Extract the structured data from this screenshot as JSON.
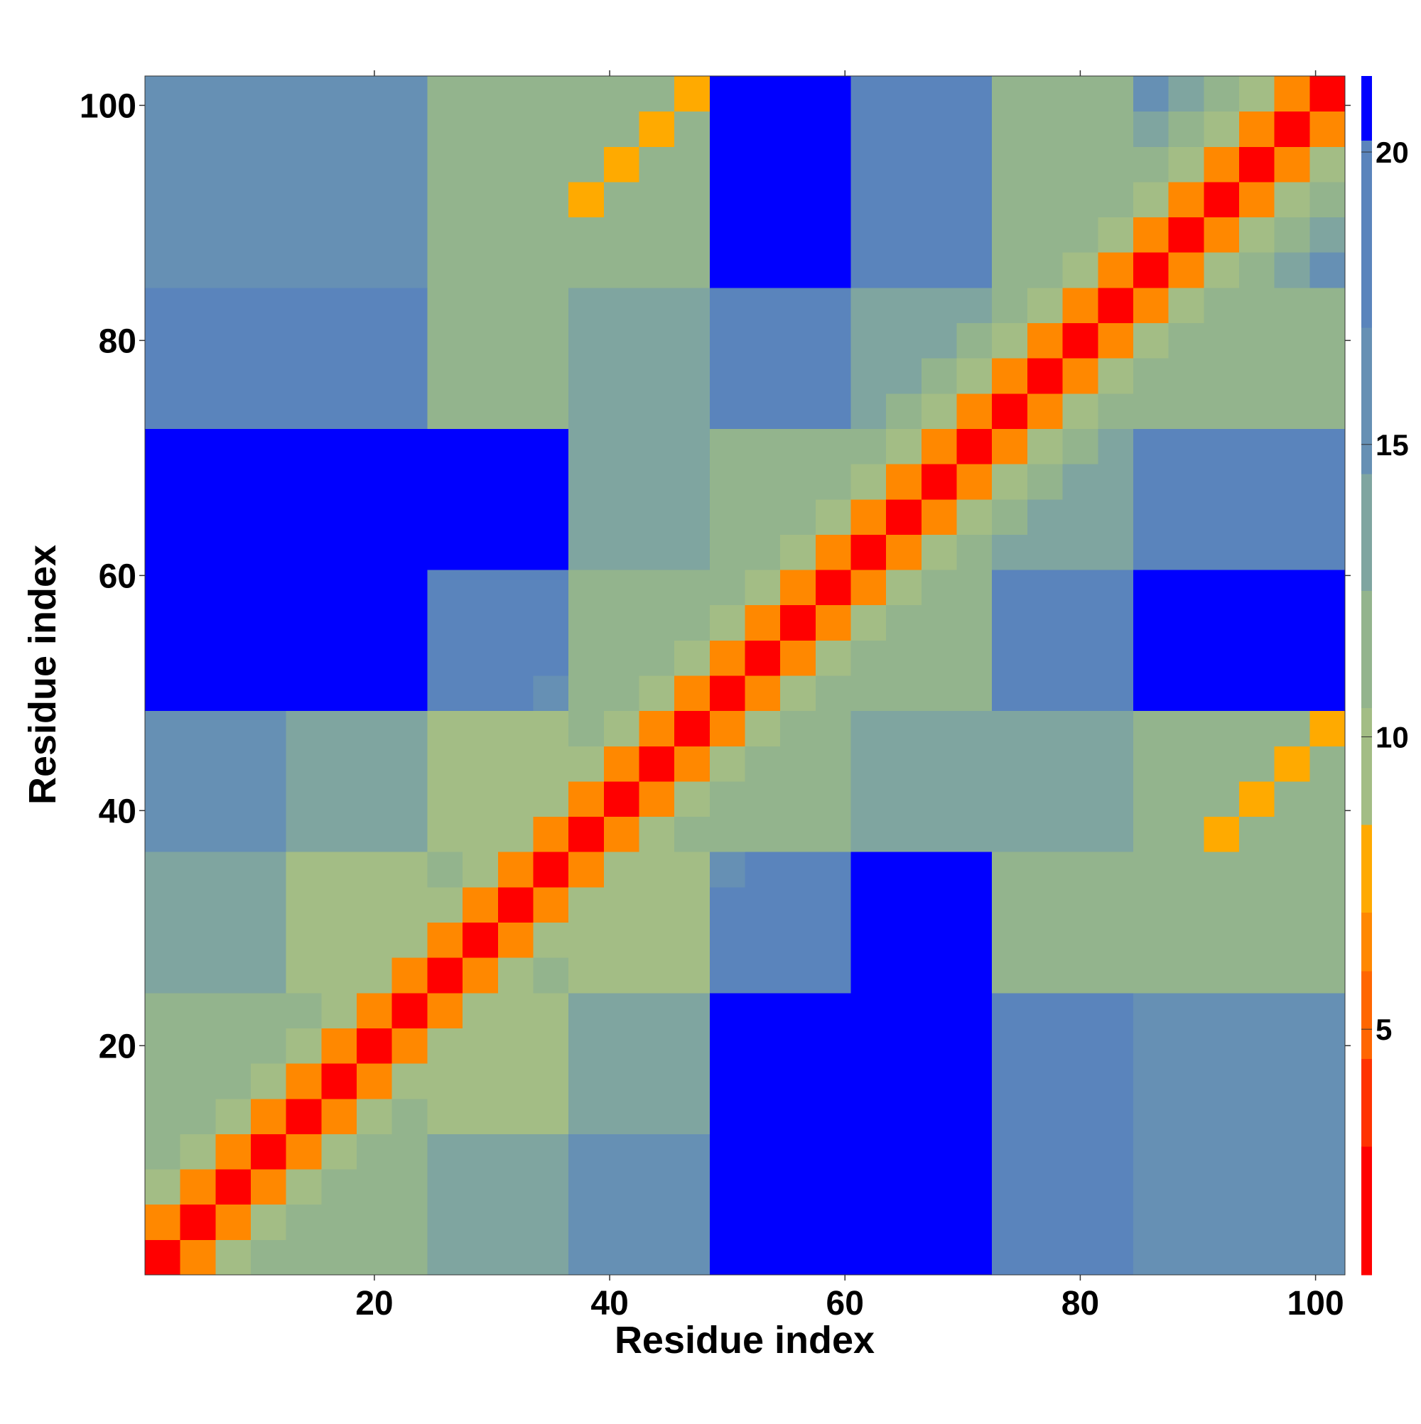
{
  "chart_data": {
    "type": "heatmap",
    "xlabel": "Residue index",
    "ylabel": "Residue index",
    "xbins": [
      0.5,
      3.5,
      6.5,
      9.5,
      12.5,
      15.5,
      18.5,
      21.5,
      24.5,
      27.5,
      30.5,
      33.5,
      36.5,
      39.5,
      42.5,
      45.5,
      48.5,
      51.5,
      54.5,
      57.5,
      60.5,
      63.5,
      66.5,
      69.5,
      72.5,
      75.5,
      78.5,
      81.5,
      84.5,
      87.5,
      90.5,
      93.5,
      96.5,
      99.5,
      102.5
    ],
    "ybins": [
      0.5,
      3.5,
      6.5,
      9.5,
      12.5,
      15.5,
      18.5,
      21.5,
      24.5,
      27.5,
      30.5,
      33.5,
      36.5,
      39.5,
      42.5,
      45.5,
      48.5,
      51.5,
      54.5,
      57.5,
      60.5,
      63.5,
      66.5,
      69.5,
      72.5,
      75.5,
      78.5,
      81.5,
      84.5,
      87.5,
      90.5,
      93.5,
      96.5,
      99.5,
      102.5
    ],
    "xlim": [
      0.5,
      102.5
    ],
    "ylim": [
      0.5,
      102.5
    ],
    "xticks": [
      20,
      40,
      60,
      80,
      100
    ],
    "yticks": [
      20,
      40,
      60,
      80,
      100
    ],
    "colorbar": {
      "bounds": [
        0.8,
        3,
        4.5,
        6,
        7,
        8.5,
        10.5,
        12.5,
        14.5,
        17,
        20.2,
        21.3
      ],
      "colors": [
        "#ff0000",
        "#ff3300",
        "#ff6600",
        "#ff8800",
        "#ffaa00",
        "#a3bd85",
        "#93b48d",
        "#7fa5a0",
        "#6690b4",
        "#5a84bc",
        "#0000ff"
      ],
      "ticks": [
        5,
        10,
        15,
        20
      ]
    },
    "values": [
      [
        2.5,
        6,
        9,
        12,
        11,
        11,
        11,
        11,
        13,
        13,
        13,
        13,
        15,
        15,
        15,
        15,
        21,
        21,
        21,
        21,
        21,
        21,
        21,
        21,
        17,
        17,
        17,
        17,
        16,
        16,
        16,
        16,
        16,
        16
      ],
      [
        6,
        2.5,
        6,
        9,
        11,
        11,
        11,
        11,
        13,
        13,
        13,
        13,
        15,
        15,
        15,
        15,
        21,
        21,
        21,
        21,
        21,
        21,
        21,
        21,
        17,
        17,
        17,
        17,
        16,
        16,
        16,
        16,
        16,
        16
      ],
      [
        9,
        6,
        2.5,
        6,
        9,
        11,
        11,
        11,
        13,
        13,
        13,
        13,
        15,
        15,
        15,
        15,
        21,
        21,
        21,
        21,
        21,
        21,
        21,
        21,
        17,
        17,
        17,
        17,
        16,
        16,
        16,
        16,
        16,
        16
      ],
      [
        12,
        9,
        6,
        2.5,
        6,
        9,
        11,
        11,
        13,
        13,
        13,
        13,
        15,
        15,
        15,
        15,
        21,
        21,
        21,
        21,
        21,
        21,
        21,
        21,
        17,
        17,
        17,
        17,
        16,
        16,
        16,
        16,
        16,
        16
      ],
      [
        11,
        11,
        9,
        6,
        2.5,
        6,
        9,
        12,
        10,
        10,
        10,
        10,
        14,
        14,
        14,
        14,
        21,
        21,
        21,
        21,
        21,
        21,
        21,
        21,
        18,
        18,
        18,
        18,
        16,
        16,
        16,
        16,
        16,
        16
      ],
      [
        11,
        11,
        11,
        9,
        6,
        2.5,
        6,
        9,
        10,
        10,
        10,
        10,
        14,
        14,
        14,
        14,
        21,
        21,
        21,
        21,
        21,
        21,
        21,
        21,
        18,
        18,
        18,
        18,
        16,
        16,
        16,
        16,
        16,
        16
      ],
      [
        11,
        11,
        11,
        11,
        9,
        6,
        2.5,
        6,
        9,
        10,
        10,
        10,
        14,
        14,
        14,
        14,
        21,
        21,
        21,
        21,
        21,
        21,
        21,
        21,
        18,
        18,
        18,
        18,
        16,
        16,
        16,
        16,
        16,
        16
      ],
      [
        11,
        11,
        11,
        11,
        12,
        9,
        6,
        2.5,
        6,
        9,
        10,
        10,
        14,
        14,
        14,
        14,
        21,
        21,
        21,
        21,
        21,
        21,
        21,
        21,
        18,
        18,
        18,
        18,
        16,
        16,
        16,
        16,
        16,
        16
      ],
      [
        13,
        13,
        13,
        13,
        10,
        10,
        9,
        6,
        2.5,
        6,
        9,
        12,
        10,
        10,
        10,
        10,
        17,
        17,
        17,
        17,
        21,
        21,
        21,
        21,
        12,
        12,
        12,
        12,
        12,
        12,
        12,
        12,
        12,
        12
      ],
      [
        13,
        13,
        13,
        13,
        10,
        10,
        10,
        9,
        6,
        2.5,
        6,
        9,
        10,
        10,
        10,
        10,
        17,
        17,
        17,
        17,
        21,
        21,
        21,
        21,
        12,
        12,
        12,
        12,
        12,
        12,
        12,
        12,
        12,
        12
      ],
      [
        13,
        13,
        13,
        13,
        10,
        10,
        10,
        10,
        9,
        6,
        2.5,
        6,
        9,
        10,
        10,
        10,
        17,
        17,
        17,
        17,
        21,
        21,
        21,
        21,
        12,
        12,
        12,
        12,
        12,
        12,
        12,
        12,
        12,
        12
      ],
      [
        13,
        13,
        13,
        13,
        10,
        10,
        10,
        10,
        12,
        9,
        6,
        2.5,
        6,
        9,
        10,
        10,
        16,
        17,
        17,
        17,
        21,
        21,
        21,
        21,
        12,
        12,
        12,
        12,
        12,
        12,
        12,
        12,
        12,
        12
      ],
      [
        15,
        15,
        15,
        15,
        14,
        14,
        14,
        14,
        10,
        10,
        9,
        6,
        2.5,
        6,
        9,
        12,
        11,
        11,
        11,
        11,
        14,
        14,
        14,
        14,
        13,
        13,
        13,
        13,
        11,
        11,
        7,
        11,
        11,
        11
      ],
      [
        15,
        15,
        15,
        15,
        14,
        14,
        14,
        14,
        10,
        10,
        10,
        9,
        6,
        2.5,
        6,
        9,
        11,
        11,
        11,
        11,
        14,
        14,
        14,
        14,
        13,
        13,
        13,
        13,
        11,
        11,
        11,
        7,
        11,
        11
      ],
      [
        15,
        15,
        15,
        15,
        14,
        14,
        14,
        14,
        10,
        10,
        10,
        10,
        9,
        6,
        2.5,
        6,
        9,
        11,
        11,
        11,
        14,
        14,
        14,
        14,
        13,
        13,
        13,
        13,
        11,
        11,
        11,
        11,
        7,
        11
      ],
      [
        15,
        15,
        15,
        15,
        14,
        14,
        14,
        14,
        10,
        10,
        10,
        10,
        12,
        9,
        6,
        2.5,
        6,
        9,
        11,
        11,
        14,
        14,
        14,
        14,
        13,
        13,
        13,
        13,
        11,
        11,
        11,
        11,
        11,
        7
      ],
      [
        21,
        21,
        21,
        21,
        21,
        21,
        21,
        21,
        17,
        17,
        17,
        16,
        11,
        11,
        9,
        6,
        2.5,
        6,
        9,
        12,
        11,
        11,
        11,
        11,
        17,
        17,
        17,
        17,
        21,
        21,
        21,
        21,
        21,
        21
      ],
      [
        21,
        21,
        21,
        21,
        21,
        21,
        21,
        21,
        17,
        17,
        17,
        17,
        11,
        11,
        11,
        9,
        6,
        2.5,
        6,
        9,
        11,
        11,
        11,
        11,
        17,
        17,
        17,
        17,
        21,
        21,
        21,
        21,
        21,
        21
      ],
      [
        21,
        21,
        21,
        21,
        21,
        21,
        21,
        21,
        17,
        17,
        17,
        17,
        11,
        11,
        11,
        11,
        9,
        6,
        2.5,
        6,
        9,
        11,
        11,
        11,
        17,
        17,
        17,
        17,
        21,
        21,
        21,
        21,
        21,
        21
      ],
      [
        21,
        21,
        21,
        21,
        21,
        21,
        21,
        21,
        17,
        17,
        17,
        17,
        11,
        11,
        11,
        11,
        12,
        9,
        6,
        2.5,
        6,
        9,
        11,
        11,
        17,
        17,
        17,
        17,
        21,
        21,
        21,
        21,
        21,
        21
      ],
      [
        21,
        21,
        21,
        21,
        21,
        21,
        21,
        21,
        21,
        21,
        21,
        21,
        14,
        14,
        14,
        14,
        11,
        11,
        9,
        6,
        2.5,
        6,
        9,
        12,
        13,
        13,
        13,
        13,
        20,
        20,
        20,
        20,
        20,
        20
      ],
      [
        21,
        21,
        21,
        21,
        21,
        21,
        21,
        21,
        21,
        21,
        21,
        21,
        14,
        14,
        14,
        14,
        11,
        11,
        11,
        9,
        6,
        2.5,
        6,
        9,
        12,
        13,
        13,
        13,
        20,
        20,
        20,
        20,
        20,
        20
      ],
      [
        21,
        21,
        21,
        21,
        21,
        21,
        21,
        21,
        21,
        21,
        21,
        21,
        14,
        14,
        14,
        14,
        11,
        11,
        11,
        11,
        9,
        6,
        2.5,
        6,
        9,
        12,
        13,
        13,
        20,
        20,
        20,
        20,
        20,
        20
      ],
      [
        21,
        21,
        21,
        21,
        21,
        21,
        21,
        21,
        21,
        21,
        21,
        21,
        14,
        14,
        14,
        14,
        11,
        11,
        11,
        11,
        12,
        9,
        6,
        2.5,
        6,
        9,
        12,
        13,
        20,
        20,
        20,
        20,
        20,
        20
      ],
      [
        17,
        17,
        17,
        17,
        18,
        18,
        18,
        18,
        12,
        12,
        12,
        12,
        13,
        13,
        13,
        13,
        17,
        17,
        17,
        17,
        13,
        12,
        9,
        6,
        2.5,
        6,
        9,
        12,
        12,
        12,
        12,
        12,
        12,
        12
      ],
      [
        17,
        17,
        17,
        17,
        18,
        18,
        18,
        18,
        12,
        12,
        12,
        12,
        13,
        13,
        13,
        13,
        17,
        17,
        17,
        17,
        13,
        13,
        12,
        9,
        6,
        2.5,
        6,
        9,
        12,
        12,
        12,
        12,
        12,
        12
      ],
      [
        17,
        17,
        17,
        17,
        18,
        18,
        18,
        18,
        12,
        12,
        12,
        12,
        13,
        13,
        13,
        13,
        17,
        17,
        17,
        17,
        13,
        13,
        13,
        12,
        9,
        6,
        2.5,
        6,
        9,
        12,
        12,
        12,
        12,
        12
      ],
      [
        17,
        17,
        17,
        17,
        18,
        18,
        18,
        18,
        12,
        12,
        12,
        12,
        13,
        13,
        13,
        13,
        17,
        17,
        17,
        17,
        13,
        13,
        13,
        13,
        12,
        9,
        6,
        2.5,
        6,
        9,
        12,
        12,
        12,
        12
      ],
      [
        16,
        16,
        16,
        16,
        16,
        16,
        16,
        16,
        12,
        12,
        12,
        12,
        11,
        11,
        11,
        11,
        21,
        21,
        21,
        21,
        20,
        20,
        20,
        20,
        12,
        12,
        9,
        6,
        2.5,
        6,
        9,
        12,
        14,
        16
      ],
      [
        16,
        16,
        16,
        16,
        16,
        16,
        16,
        16,
        12,
        12,
        12,
        12,
        11,
        11,
        11,
        11,
        21,
        21,
        21,
        21,
        20,
        20,
        20,
        20,
        12,
        12,
        12,
        9,
        6,
        2.5,
        6,
        9,
        12,
        14
      ],
      [
        16,
        16,
        16,
        16,
        16,
        16,
        16,
        16,
        12,
        12,
        12,
        12,
        7,
        11,
        11,
        11,
        21,
        21,
        21,
        21,
        20,
        20,
        20,
        20,
        12,
        12,
        12,
        12,
        9,
        6,
        2.5,
        6,
        9,
        12
      ],
      [
        16,
        16,
        16,
        16,
        16,
        16,
        16,
        16,
        12,
        12,
        12,
        12,
        11,
        7,
        11,
        11,
        21,
        21,
        21,
        21,
        20,
        20,
        20,
        20,
        12,
        12,
        12,
        12,
        12,
        9,
        6,
        2.5,
        6,
        9
      ],
      [
        16,
        16,
        16,
        16,
        16,
        16,
        16,
        16,
        12,
        12,
        12,
        12,
        11,
        11,
        7,
        11,
        21,
        21,
        21,
        21,
        20,
        20,
        20,
        20,
        12,
        12,
        12,
        12,
        14,
        12,
        9,
        6,
        2.5,
        6
      ],
      [
        16,
        16,
        16,
        16,
        16,
        16,
        16,
        16,
        12,
        12,
        12,
        12,
        11,
        11,
        11,
        7,
        21,
        21,
        21,
        21,
        20,
        20,
        20,
        20,
        12,
        12,
        12,
        12,
        16,
        14,
        12,
        9,
        6,
        2.5
      ]
    ]
  }
}
